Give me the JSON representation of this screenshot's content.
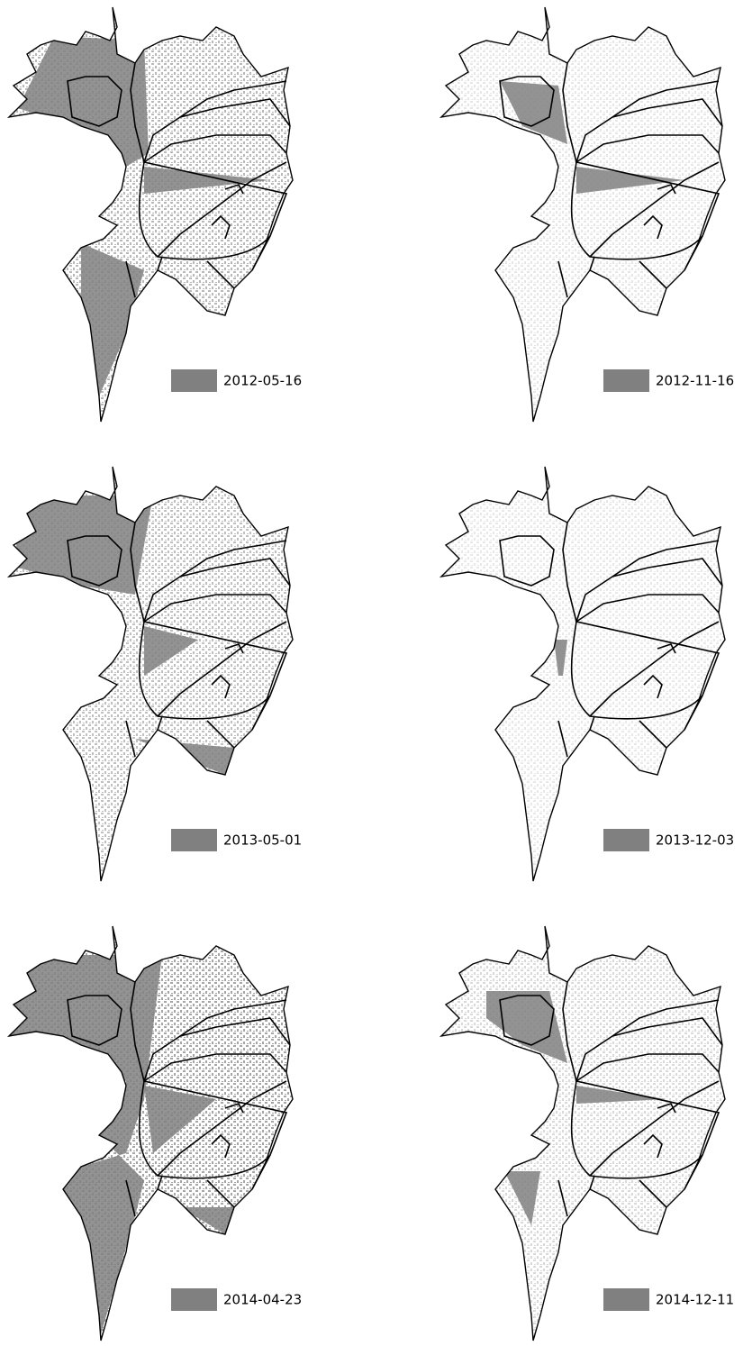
{
  "panels": [
    {
      "label": "2012-05-16"
    },
    {
      "label": "2012-11-16"
    },
    {
      "label": "2013-05-01"
    },
    {
      "label": "2013-12-03"
    },
    {
      "label": "2014-04-23"
    },
    {
      "label": "2014-12-11"
    }
  ]
}
